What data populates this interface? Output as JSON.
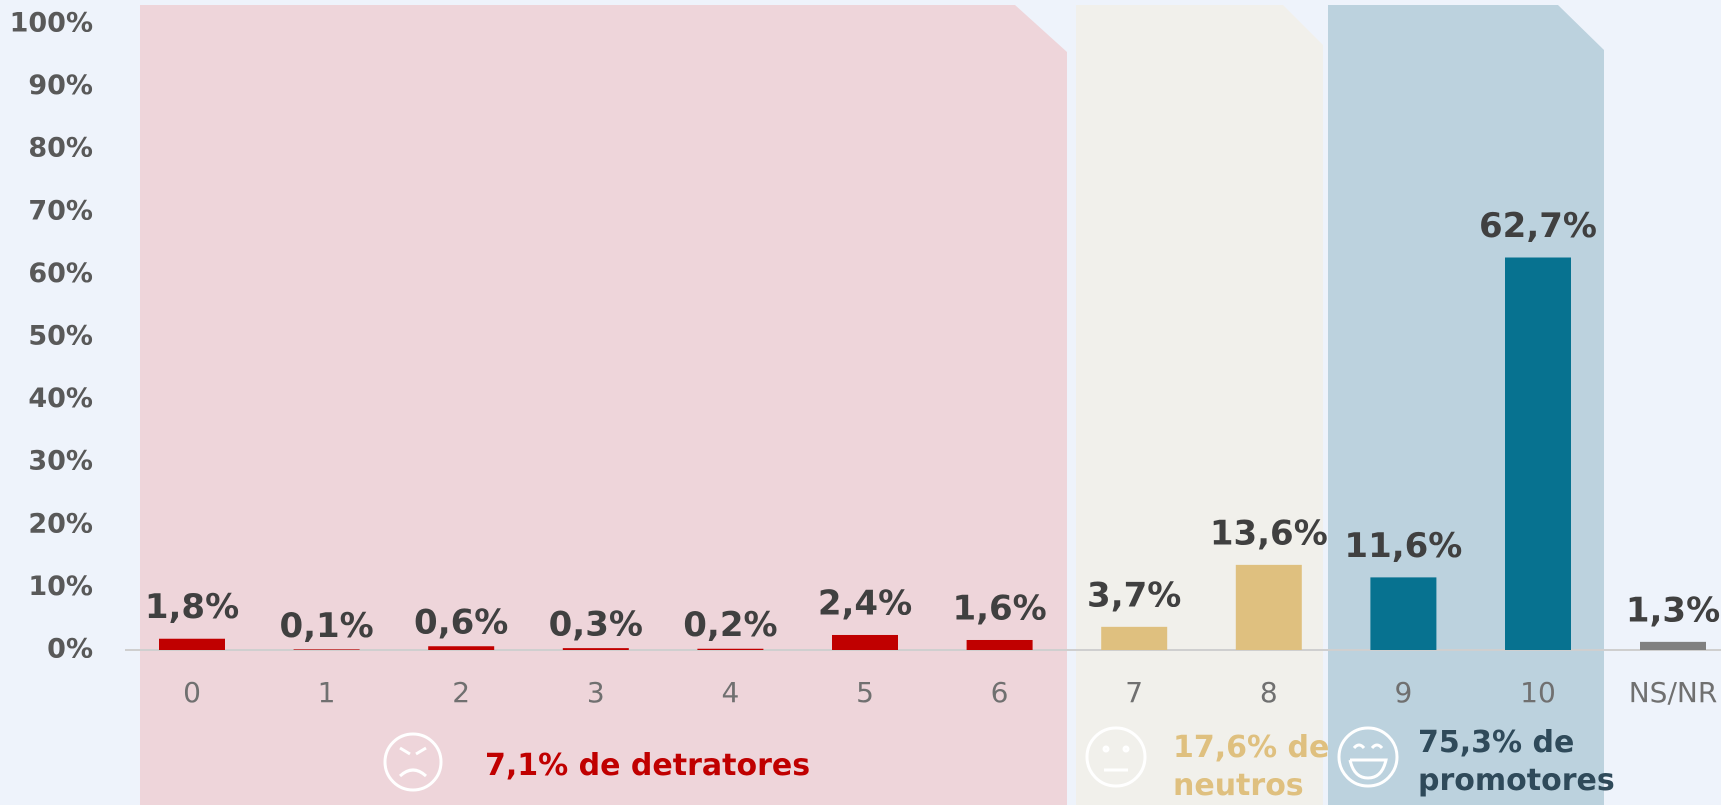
{
  "chart_data": {
    "type": "bar",
    "categories": [
      "0",
      "1",
      "2",
      "3",
      "4",
      "5",
      "6",
      "7",
      "8",
      "9",
      "10",
      "NS/NR"
    ],
    "values": [
      1.8,
      0.1,
      0.6,
      0.3,
      0.2,
      2.4,
      1.6,
      3.7,
      13.6,
      11.6,
      62.7,
      1.3
    ],
    "value_labels": [
      "1,8%",
      "0,1%",
      "0,6%",
      "0,3%",
      "0,2%",
      "2,4%",
      "1,6%",
      "3,7%",
      "13,6%",
      "11,6%",
      "62,7%",
      "1,3%"
    ],
    "colors": [
      "#c00000",
      "#c00000",
      "#c00000",
      "#c00000",
      "#c00000",
      "#c00000",
      "#c00000",
      "#dfc07f",
      "#dfc07f",
      "#077290",
      "#077290",
      "#808080"
    ],
    "ylim": [
      0,
      100
    ],
    "yticks": [
      {
        "value": 0,
        "label": "0%"
      },
      {
        "value": 10,
        "label": "10%"
      },
      {
        "value": 20,
        "label": "20%"
      },
      {
        "value": 30,
        "label": "30%"
      },
      {
        "value": 40,
        "label": "40%"
      },
      {
        "value": 50,
        "label": "50%"
      },
      {
        "value": 60,
        "label": "60%"
      },
      {
        "value": 70,
        "label": "70%"
      },
      {
        "value": 80,
        "label": "80%"
      },
      {
        "value": 90,
        "label": "90%"
      },
      {
        "value": 100,
        "label": "100%"
      }
    ],
    "grid": false,
    "annotations": [
      {
        "lines": [
          "7,1% de detratores"
        ],
        "color": "#c00000"
      },
      {
        "lines": [
          "17,6% de",
          "neutros"
        ],
        "color": "#dfc07f"
      },
      {
        "lines": [
          "75,3% de",
          "promotores"
        ],
        "color": "#2f4a5a"
      }
    ]
  }
}
